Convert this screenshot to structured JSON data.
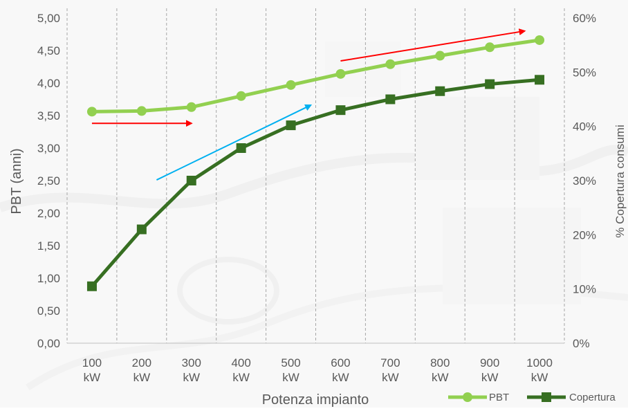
{
  "chart_data": {
    "type": "line",
    "categories": [
      "100 kW",
      "200 kW",
      "300 kW",
      "400 kW",
      "500 kW",
      "600 kW",
      "700 kW",
      "800 kW",
      "900 kW",
      "1000 kW"
    ],
    "xlabel": "Potenza impianto",
    "ylabel": "PBT (anni)",
    "y2label": "% Copertura consumi",
    "ylim": [
      0,
      5
    ],
    "y2lim": [
      0,
      60
    ],
    "yticks": [
      "0,00",
      "0,50",
      "1,00",
      "1,50",
      "2,00",
      "2,50",
      "3,00",
      "3,50",
      "4,00",
      "4,50",
      "5,00"
    ],
    "y2ticks": [
      "0%",
      "10%",
      "20%",
      "30%",
      "40%",
      "50%",
      "60%"
    ],
    "grid": "vertical dashed",
    "legend_position": "bottom-right",
    "series": [
      {
        "name": "PBT",
        "axis": "left",
        "marker": "circle",
        "color": "#92D050",
        "values": [
          3.56,
          3.57,
          3.63,
          3.8,
          3.97,
          4.14,
          4.29,
          4.42,
          4.55,
          4.66
        ]
      },
      {
        "name": "Copertura",
        "axis": "right",
        "marker": "square",
        "color": "#376F22",
        "values": [
          10.5,
          21.0,
          30.0,
          36.0,
          40.2,
          43.0,
          45.0,
          46.5,
          47.8,
          48.6
        ]
      }
    ],
    "annotations": [
      {
        "type": "arrow",
        "color": "#FF0000",
        "from": [
          100,
          3.38
        ],
        "to": [
          300,
          3.38
        ]
      },
      {
        "type": "arrow",
        "color": "#00B0F0",
        "from": [
          230,
          2.51
        ],
        "to": [
          540,
          3.66
        ]
      },
      {
        "type": "arrow",
        "color": "#FF0000",
        "from": [
          600,
          4.34
        ],
        "to": [
          970,
          4.8
        ]
      }
    ]
  }
}
